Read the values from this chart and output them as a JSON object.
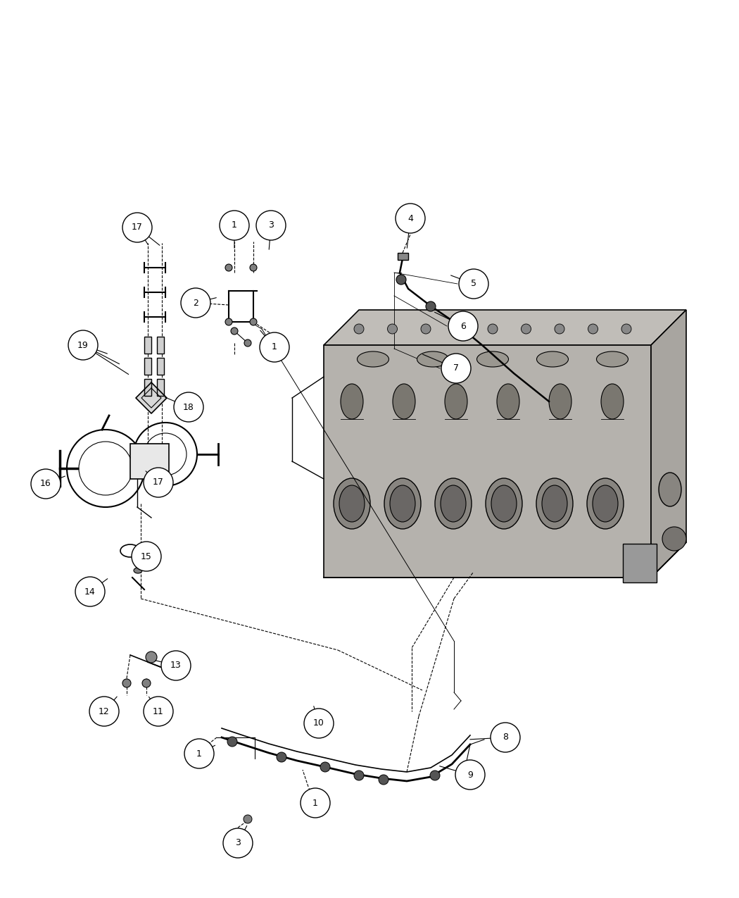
{
  "bg_color": "#ffffff",
  "figsize": [
    10.5,
    12.75
  ],
  "dpi": 100,
  "callout_data": [
    [
      17,
      1.95,
      9.52
    ],
    [
      1,
      3.33,
      9.55
    ],
    [
      3,
      3.85,
      9.55
    ],
    [
      19,
      1.18,
      7.85
    ],
    [
      18,
      2.68,
      6.97
    ],
    [
      16,
      0.65,
      5.88
    ],
    [
      17,
      2.25,
      5.9
    ],
    [
      15,
      2.08,
      4.85
    ],
    [
      14,
      1.28,
      4.35
    ],
    [
      13,
      2.5,
      3.3
    ],
    [
      12,
      1.48,
      2.65
    ],
    [
      11,
      2.25,
      2.65
    ],
    [
      2,
      2.78,
      8.45
    ],
    [
      1,
      3.9,
      7.82
    ],
    [
      4,
      5.83,
      9.65
    ],
    [
      5,
      6.73,
      8.72
    ],
    [
      6,
      6.58,
      8.12
    ],
    [
      7,
      6.48,
      7.52
    ],
    [
      8,
      7.18,
      2.28
    ],
    [
      9,
      6.68,
      1.75
    ],
    [
      10,
      4.53,
      2.48
    ],
    [
      1,
      2.83,
      2.05
    ],
    [
      1,
      4.48,
      1.35
    ],
    [
      3,
      3.38,
      0.78
    ]
  ],
  "leader_data": [
    [
      1.95,
      9.52,
      2.12,
      9.25
    ],
    [
      1.95,
      9.52,
      2.29,
      9.25
    ],
    [
      3.33,
      9.55,
      3.33,
      9.2
    ],
    [
      3.85,
      9.55,
      3.82,
      9.18
    ],
    [
      1.18,
      7.85,
      1.55,
      7.72
    ],
    [
      1.18,
      7.85,
      1.72,
      7.57
    ],
    [
      1.18,
      7.85,
      1.85,
      7.42
    ],
    [
      2.68,
      6.97,
      2.32,
      7.12
    ],
    [
      0.65,
      5.88,
      0.95,
      6.0
    ],
    [
      2.25,
      5.9,
      2.05,
      6.08
    ],
    [
      2.08,
      4.85,
      1.88,
      4.95
    ],
    [
      1.28,
      4.35,
      1.55,
      4.55
    ],
    [
      2.5,
      3.3,
      2.18,
      3.38
    ],
    [
      1.48,
      2.65,
      1.68,
      2.88
    ],
    [
      2.25,
      2.65,
      2.1,
      2.88
    ],
    [
      2.78,
      8.45,
      3.1,
      8.53
    ],
    [
      3.9,
      7.82,
      3.68,
      8.08
    ],
    [
      5.83,
      9.65,
      5.78,
      9.2
    ],
    [
      6.73,
      8.72,
      6.38,
      8.85
    ],
    [
      6.58,
      8.12,
      6.15,
      8.33
    ],
    [
      6.48,
      7.52,
      5.98,
      7.73
    ],
    [
      7.18,
      2.28,
      6.65,
      2.25
    ],
    [
      6.68,
      1.75,
      6.22,
      1.88
    ],
    [
      4.53,
      2.48,
      4.45,
      2.75
    ],
    [
      2.83,
      2.05,
      3.08,
      2.18
    ],
    [
      4.48,
      1.35,
      4.38,
      1.58
    ],
    [
      3.38,
      0.78,
      3.52,
      1.05
    ]
  ]
}
